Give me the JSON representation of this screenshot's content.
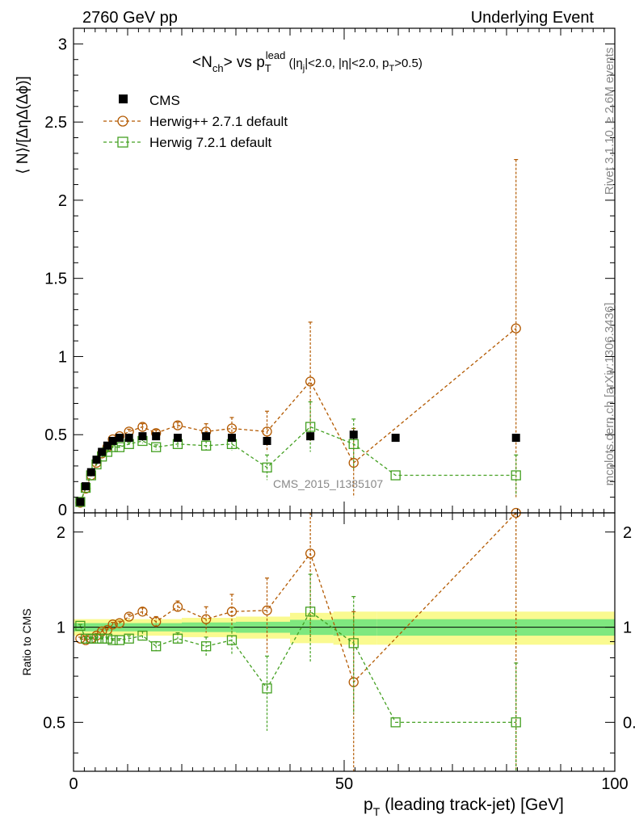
{
  "header": {
    "left": "2760 GeV pp",
    "right": "Underlying Event",
    "side_top": "Rivet 3.1.10, ≥ 2.6M events",
    "side_bottom": "mcplots.cern.ch [arXiv:1306.3436]",
    "watermark": "CMS_2015_I1385107"
  },
  "title": {
    "main": "<N",
    "main_sub": "ch",
    "main_after": "> vs p",
    "pt_sub": "T",
    "pt_sup": "lead",
    "cut_open": " (|η",
    "cut_j": "j",
    "cut_mid": "|<2.0, |η|<2.0, p",
    "cut_T": "T",
    "cut_close": ">0.5)"
  },
  "colors": {
    "cms": "#000000",
    "herwigpp": "#b35900",
    "herwig7": "#44a022",
    "band_inner": "#7fe87f",
    "band_outer": "#fafa90"
  },
  "chart_data": [
    {
      "type": "scatter",
      "title": "<Nch> vs pT lead (|ηj|<2.0, |η|<2.0, pT>0.5)",
      "ylabel": "⟨ N⟩/[ΔηΔ(Δϕ)]",
      "xlabel": "",
      "xlim": [
        0,
        100
      ],
      "ylim": [
        0,
        3.1
      ],
      "yticks": [
        0,
        0.5,
        1,
        1.5,
        2,
        2.5,
        3
      ],
      "ytick_labels": [
        "0",
        "0.5",
        "1",
        "1.5",
        "2",
        "2.5",
        "3"
      ],
      "x": [
        1.25,
        2.25,
        3.25,
        4.25,
        5.25,
        6.25,
        7.25,
        8.5,
        10.25,
        12.75,
        15.25,
        19.25,
        24.5,
        29.25,
        35.75,
        43.75,
        51.75,
        59.5,
        81.75
      ],
      "legend": {
        "placement": "top-left",
        "entries": [
          "CMS",
          "Herwig++ 2.7.1 default",
          "Herwig 7.2.1 default"
        ]
      },
      "series": [
        {
          "name": "CMS",
          "marker": "filled-square",
          "values": [
            0.07,
            0.17,
            0.26,
            0.34,
            0.39,
            0.43,
            0.46,
            0.48,
            0.48,
            0.49,
            0.49,
            0.48,
            0.49,
            0.48,
            0.46,
            0.49,
            0.5,
            0.48,
            0.48
          ],
          "errors": [
            0.01,
            0.01,
            0.01,
            0.01,
            0.01,
            0.01,
            0.01,
            0.01,
            0.01,
            0.01,
            0.01,
            0.01,
            0.01,
            0.01,
            0.01,
            0.02,
            0.03,
            0.02,
            0.02
          ]
        },
        {
          "name": "Herwig++ 2.7.1 default",
          "marker": "open-circle",
          "values": [
            0.065,
            0.155,
            0.24,
            0.32,
            0.38,
            0.42,
            0.47,
            0.49,
            0.52,
            0.55,
            0.51,
            0.56,
            0.52,
            0.54,
            0.52,
            0.84,
            0.32,
            null,
            1.18
          ],
          "errors": [
            0.003,
            0.005,
            0.007,
            0.01,
            0.01,
            0.01,
            0.01,
            0.01,
            0.015,
            0.02,
            0.02,
            0.02,
            0.05,
            0.07,
            0.13,
            0.38,
            0.22,
            null,
            1.08
          ]
        },
        {
          "name": "Herwig 7.2.1 default",
          "marker": "open-square",
          "values": [
            0.07,
            0.16,
            0.24,
            0.31,
            0.36,
            0.39,
            0.42,
            0.42,
            0.44,
            0.46,
            0.42,
            0.44,
            0.43,
            0.44,
            0.29,
            0.55,
            0.44,
            0.24,
            0.24
          ],
          "errors": [
            0.003,
            0.005,
            0.006,
            0.008,
            0.01,
            0.01,
            0.01,
            0.01,
            0.01,
            0.015,
            0.015,
            0.02,
            0.03,
            0.04,
            0.08,
            0.16,
            0.16,
            null,
            0.13
          ]
        }
      ]
    },
    {
      "type": "scatter",
      "title": "",
      "ylabel": "Ratio to CMS",
      "xlabel": "p_T (leading track-jet) [GeV]",
      "xlabel_p": "p",
      "xlabel_sub": "T",
      "xlabel_rest": " (leading track-jet) [GeV]",
      "xlim": [
        0,
        100
      ],
      "ylim": [
        0.35,
        2.3
      ],
      "yscale": "log",
      "xticks": [
        0,
        50,
        100
      ],
      "xtick_labels": [
        "0",
        "50",
        "100"
      ],
      "yticks": [
        0.5,
        1,
        2
      ],
      "ytick_labels": [
        "0.5",
        "1",
        "2"
      ],
      "x": [
        1.25,
        2.25,
        3.25,
        4.25,
        5.25,
        6.25,
        7.25,
        8.5,
        10.25,
        12.75,
        15.25,
        19.25,
        24.5,
        29.25,
        35.75,
        43.75,
        51.75,
        59.5,
        81.75
      ],
      "band": {
        "x_edges": [
          0,
          20,
          30,
          40,
          48,
          56,
          100
        ],
        "inner": [
          0.03,
          0.035,
          0.04,
          0.055,
          0.06,
          0.06
        ],
        "outer": [
          0.06,
          0.07,
          0.08,
          0.11,
          0.12,
          0.12
        ]
      },
      "series": [
        {
          "name": "Herwig++ 2.7.1 default",
          "marker": "open-circle",
          "values": [
            0.92,
            0.91,
            0.92,
            0.94,
            0.97,
            0.98,
            1.02,
            1.03,
            1.08,
            1.12,
            1.04,
            1.16,
            1.06,
            1.12,
            1.13,
            1.71,
            0.67,
            null,
            2.4
          ],
          "errors": [
            0.01,
            0.01,
            0.01,
            0.015,
            0.015,
            0.015,
            0.015,
            0.015,
            0.02,
            0.03,
            0.04,
            0.05,
            0.1,
            0.15,
            0.3,
            0.8,
            0.45,
            null,
            2.2
          ]
        },
        {
          "name": "Herwig 7.2.1 default",
          "marker": "open-square",
          "values": [
            1.01,
            0.92,
            0.92,
            0.92,
            0.92,
            0.92,
            0.91,
            0.91,
            0.92,
            0.94,
            0.87,
            0.92,
            0.87,
            0.91,
            0.64,
            1.12,
            0.89,
            0.5,
            0.5
          ],
          "errors": [
            0.01,
            0.01,
            0.01,
            0.01,
            0.01,
            0.01,
            0.01,
            0.01,
            0.02,
            0.03,
            0.03,
            0.04,
            0.06,
            0.09,
            0.17,
            0.35,
            0.36,
            null,
            0.27
          ]
        }
      ]
    }
  ]
}
